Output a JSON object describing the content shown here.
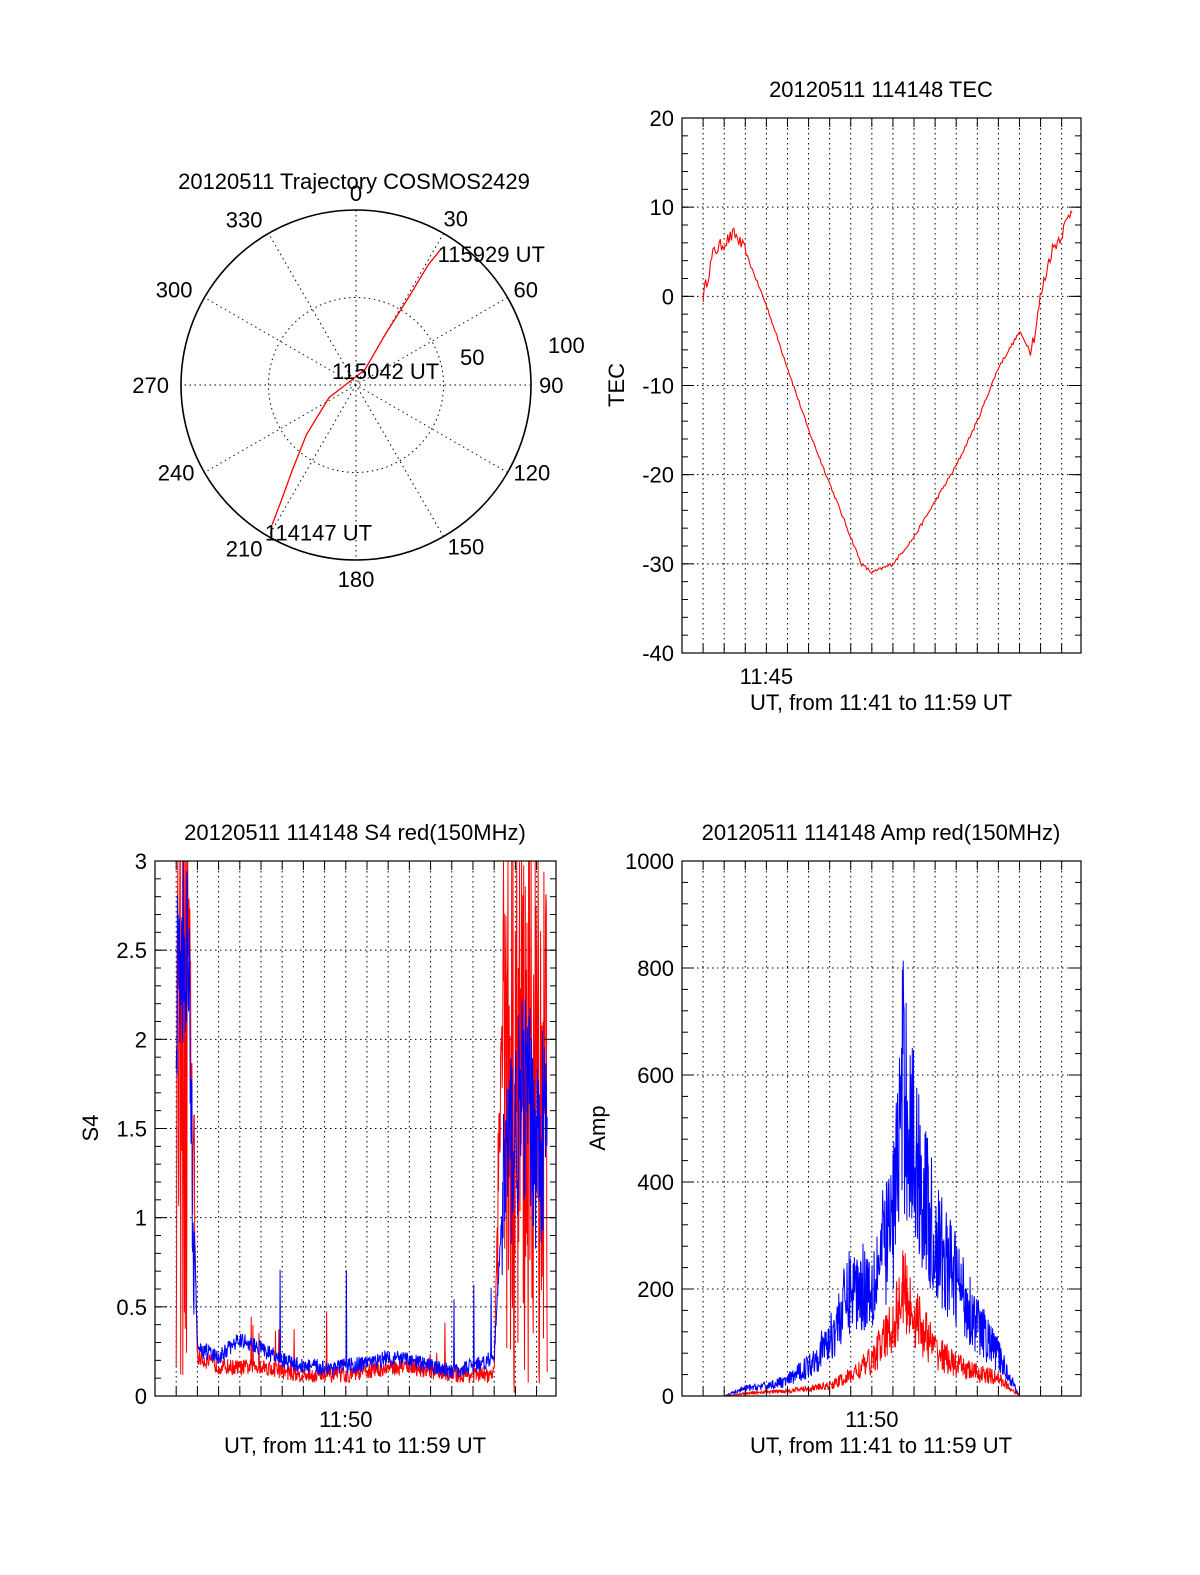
{
  "chart_data": [
    {
      "type": "polar",
      "title": "20120511 Trajectory COSMOS2429",
      "azimuth_labels": [
        "0",
        "30",
        "60",
        "90",
        "120",
        "150",
        "180",
        "210",
        "240",
        "270",
        "300",
        "330"
      ],
      "radial_labels": [
        "50",
        "100"
      ],
      "rlim": [
        0,
        100
      ],
      "grid": true,
      "series": [
        {
          "color": "#ff0000",
          "points": [
            {
              "az": 211,
              "r": 93
            },
            {
              "az": 213,
              "r": 78
            },
            {
              "az": 217,
              "r": 60
            },
            {
              "az": 225,
              "r": 40
            },
            {
              "az": 245,
              "r": 17
            },
            {
              "az": 30,
              "r": 10
            },
            {
              "az": 30,
              "r": 33
            },
            {
              "az": 31,
              "r": 60
            },
            {
              "az": 31,
              "r": 80
            },
            {
              "az": 32,
              "r": 91
            }
          ]
        }
      ],
      "annotations": [
        {
          "text": "115929 UT",
          "az": 33,
          "r": 92
        },
        {
          "text": "115042 UT",
          "az": 0,
          "r": 0
        },
        {
          "text": "114147 UT",
          "az": 212,
          "r": 94
        }
      ]
    },
    {
      "type": "line",
      "title": "20120511 114148 TEC",
      "xlabel": "UT, from 11:41 to 11:59 UT",
      "ylabel": "TEC",
      "ylim": [
        -40,
        20
      ],
      "yticks": [
        "-40",
        "-30",
        "-20",
        "-10",
        "0",
        "10",
        "20"
      ],
      "xtick_labels": [
        "11:45"
      ],
      "grid": true,
      "series": [
        {
          "color": "#ff0000",
          "x": [
            "11:42",
            "11:42:30",
            "11:43",
            "11:43:30",
            "11:44",
            "11:45",
            "11:46",
            "11:47",
            "11:48",
            "11:49",
            "11:49:30",
            "11:50",
            "11:51",
            "11:52",
            "11:53",
            "11:54",
            "11:55",
            "11:56",
            "11:57",
            "11:57:30",
            "11:57:45",
            "11:58",
            "11:58:30",
            "11:59",
            "11:59:30"
          ],
          "y": [
            0,
            5,
            6,
            7,
            5,
            -1,
            -8,
            -15,
            -21,
            -27,
            -30,
            -31,
            -30,
            -27,
            -23,
            -19,
            -14,
            -8,
            -4,
            -6,
            -4,
            0,
            5,
            7,
            10
          ]
        }
      ]
    },
    {
      "type": "line",
      "title": "20120511 114148 S4 red(150MHz)",
      "xlabel": "UT, from 11:41 to 11:59 UT",
      "ylabel": "S4",
      "ylim": [
        0,
        3
      ],
      "yticks": [
        "0",
        "0.5",
        "1",
        "1.5",
        "2",
        "2.5",
        "3"
      ],
      "xtick_labels": [
        "11:50"
      ],
      "grid": true,
      "series": [
        {
          "color": "#ff0000",
          "x": [
            "11:42",
            "11:42:30",
            "11:43",
            "11:44",
            "11:45",
            "11:46",
            "11:47",
            "11:48",
            "11:49",
            "11:50",
            "11:51",
            "11:52",
            "11:53",
            "11:54",
            "11:55",
            "11:56",
            "11:57",
            "11:57:30",
            "11:58",
            "11:58:30",
            "11:59",
            "11:59:30"
          ],
          "y": [
            3,
            3,
            0.2,
            0.15,
            0.14,
            0.15,
            0.12,
            0.1,
            0.1,
            0.1,
            0.12,
            0.14,
            0.15,
            0.12,
            0.1,
            0.1,
            0.1,
            3,
            3,
            3,
            3,
            3
          ]
        },
        {
          "color": "#0000ff",
          "x": [
            "11:42",
            "11:42:30",
            "11:43",
            "11:44",
            "11:45",
            "11:46",
            "11:47",
            "11:48",
            "11:49",
            "11:50",
            "11:51",
            "11:52",
            "11:53",
            "11:54",
            "11:55",
            "11:56",
            "11:57",
            "11:57:30",
            "11:58",
            "11:58:30",
            "11:59",
            "11:59:30"
          ],
          "y": [
            2.2,
            2.6,
            0.25,
            0.2,
            0.3,
            0.25,
            0.18,
            0.15,
            0.14,
            0.15,
            0.16,
            0.2,
            0.18,
            0.15,
            0.12,
            0.15,
            0.2,
            1.3,
            1.5,
            1.7,
            1.4,
            1.5
          ]
        }
      ]
    },
    {
      "type": "line",
      "title": "20120511 114148 Amp red(150MHz)",
      "xlabel": "UT, from 11:41 to 11:59 UT",
      "ylabel": "Amp",
      "ylim": [
        0,
        1000
      ],
      "yticks": [
        "0",
        "200",
        "400",
        "600",
        "800",
        "1000"
      ],
      "xtick_labels": [
        "11:50"
      ],
      "grid": true,
      "series": [
        {
          "color": "#0000ff",
          "x": [
            "11:42",
            "11:43",
            "11:44",
            "11:45",
            "11:46",
            "11:47",
            "11:48",
            "11:49",
            "11:50",
            "11:51",
            "11:51:30",
            "11:52",
            "11:53",
            "11:54",
            "11:55",
            "11:56",
            "11:57",
            "11:58",
            "11:59",
            "11:59:30"
          ],
          "y": [
            0,
            0,
            15,
            20,
            30,
            60,
            110,
            210,
            220,
            350,
            620,
            480,
            300,
            230,
            140,
            80,
            0,
            0,
            0,
            0
          ]
        },
        {
          "color": "#ff0000",
          "x": [
            "11:42",
            "11:43",
            "11:44",
            "11:45",
            "11:46",
            "11:47",
            "11:48",
            "11:49",
            "11:50",
            "11:51",
            "11:51:30",
            "11:52",
            "11:53",
            "11:54",
            "11:55",
            "11:56",
            "11:57",
            "11:58",
            "11:59",
            "11:59:30"
          ],
          "y": [
            0,
            0,
            5,
            8,
            10,
            15,
            20,
            40,
            70,
            140,
            210,
            160,
            90,
            60,
            45,
            35,
            0,
            0,
            0,
            0
          ]
        }
      ]
    }
  ]
}
